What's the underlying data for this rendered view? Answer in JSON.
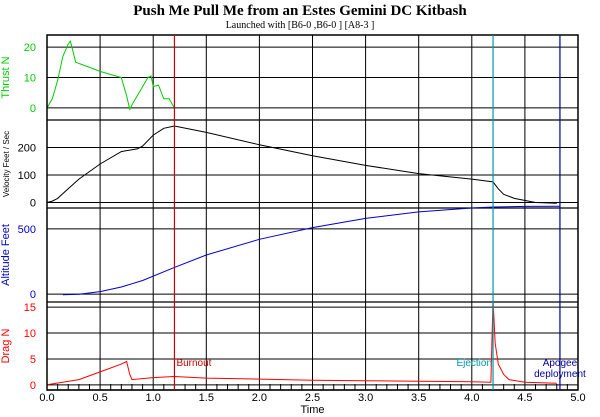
{
  "title": "Push Me Pull Me from an Estes Gemini DC Kitbash",
  "subtitle": "Launched with [B6-0   ,B6-0   ] [A8-3    ]",
  "chart_data": [
    {
      "type": "line",
      "ylabel": "Thrust N",
      "color": "#00cc00",
      "ylim": [
        -4,
        24
      ],
      "yticks": [
        0,
        10,
        20
      ],
      "series": [
        {
          "x": [
            0.0,
            0.05,
            0.1,
            0.15,
            0.2,
            0.22,
            0.27,
            0.35,
            0.5,
            0.6,
            0.7,
            0.75,
            0.78,
            0.8,
            0.85,
            0.9,
            0.95,
            0.98,
            1.0,
            1.05,
            1.1,
            1.15,
            1.2
          ],
          "y": [
            0,
            3,
            9,
            17,
            21,
            22,
            15,
            14,
            12,
            11,
            10,
            4,
            -0.5,
            1,
            4,
            7,
            10,
            10.5,
            7,
            7.5,
            3,
            3,
            0
          ]
        }
      ]
    },
    {
      "type": "line",
      "ylabel": "Velocity Feet / Sec",
      "color": "#000000",
      "ylim": [
        -20,
        300
      ],
      "yticks": [
        0,
        100,
        200
      ],
      "series": [
        {
          "x": [
            0.0,
            0.05,
            0.1,
            0.2,
            0.3,
            0.5,
            0.7,
            0.8,
            0.85,
            0.9,
            1.0,
            1.1,
            1.2,
            1.5,
            2.0,
            2.5,
            3.0,
            3.5,
            4.0,
            4.2,
            4.25,
            4.3,
            4.4,
            4.6,
            4.8
          ],
          "y": [
            0,
            5,
            15,
            50,
            85,
            140,
            185,
            192,
            195,
            205,
            245,
            270,
            278,
            255,
            210,
            170,
            135,
            105,
            85,
            75,
            50,
            30,
            15,
            0,
            -3
          ]
        }
      ]
    },
    {
      "type": "line",
      "ylabel": "Altitude Feet",
      "color": "#0000cc",
      "ylim": [
        -60,
        660
      ],
      "yticks": [
        0,
        500
      ],
      "series": [
        {
          "x": [
            0.15,
            0.3,
            0.5,
            0.7,
            0.9,
            1.2,
            1.5,
            2.0,
            2.5,
            3.0,
            3.5,
            4.0,
            4.2,
            4.5,
            4.83
          ],
          "y": [
            -5,
            0,
            20,
            55,
            105,
            205,
            300,
            420,
            510,
            580,
            630,
            660,
            668,
            672,
            673
          ]
        }
      ]
    },
    {
      "type": "line",
      "ylabel": "Drag N",
      "color": "#ff0000",
      "ylim": [
        -1,
        16
      ],
      "yticks": [
        0,
        5,
        10,
        15
      ],
      "series": [
        {
          "x": [
            0.0,
            0.3,
            0.5,
            0.7,
            0.75,
            0.78,
            0.8,
            1.0,
            1.2,
            1.5,
            2.0,
            2.5,
            3.0,
            3.5,
            4.0,
            4.18,
            4.2,
            4.22,
            4.25,
            4.3,
            4.35,
            4.5,
            4.8
          ],
          "y": [
            0,
            1,
            2.5,
            4,
            4.5,
            2,
            1,
            1.4,
            1.6,
            1.3,
            1.1,
            0.9,
            0.8,
            0.7,
            0.6,
            0.5,
            16.5,
            8,
            4,
            2,
            1,
            0.5,
            0.3
          ]
        }
      ]
    }
  ],
  "x_axis": {
    "label": "Time",
    "xlim": [
      0,
      5
    ],
    "ticks": [
      "0.0",
      "0.5",
      "1.0",
      "1.5",
      "2.0",
      "2.5",
      "3.0",
      "3.5",
      "4.0",
      "4.5",
      "5.0"
    ]
  },
  "events": [
    {
      "label": "Burnout",
      "time": 1.2,
      "color": "#cc0000"
    },
    {
      "label": "Ejection",
      "time": 4.2,
      "color": "#0099aa"
    },
    {
      "label": "Apogee deployment",
      "time": 4.83,
      "color": "#000099"
    }
  ]
}
